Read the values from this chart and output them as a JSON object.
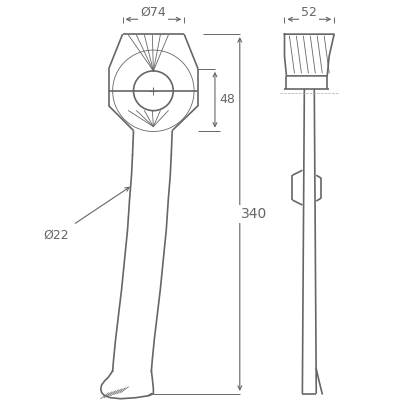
{
  "bg_color": "#ffffff",
  "line_color": "#666666",
  "dim_color": "#666666",
  "line_width": 1.2,
  "font_size": 9,
  "dim_74": "Ø74",
  "dim_48": "48",
  "dim_22": "Ø22",
  "dim_340": "340",
  "dim_52": "52"
}
